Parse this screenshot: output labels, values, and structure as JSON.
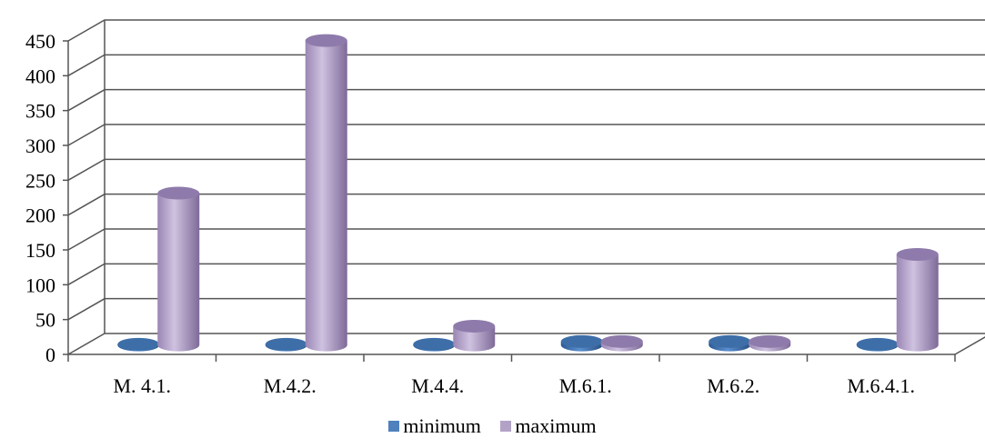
{
  "chart_data": {
    "type": "bar",
    "style": "3d-cylinder",
    "categories": [
      "M. 4.1.",
      "M.4.2.",
      "M.4.4.",
      "M.6.1.",
      "M.6.2.",
      "M.6.4.1."
    ],
    "series": [
      {
        "name": "minimum",
        "values": [
          1,
          1,
          1,
          5,
          5,
          1
        ],
        "color": "#4f81bd"
      },
      {
        "name": "maximum",
        "values": [
          218,
          437,
          27,
          5,
          5,
          130
        ],
        "color": "#b3a2c7"
      }
    ],
    "ylim": [
      0,
      450
    ],
    "yticks": [
      0,
      50,
      100,
      150,
      200,
      250,
      300,
      350,
      400,
      450
    ],
    "grid": true,
    "legend_position": "bottom"
  }
}
